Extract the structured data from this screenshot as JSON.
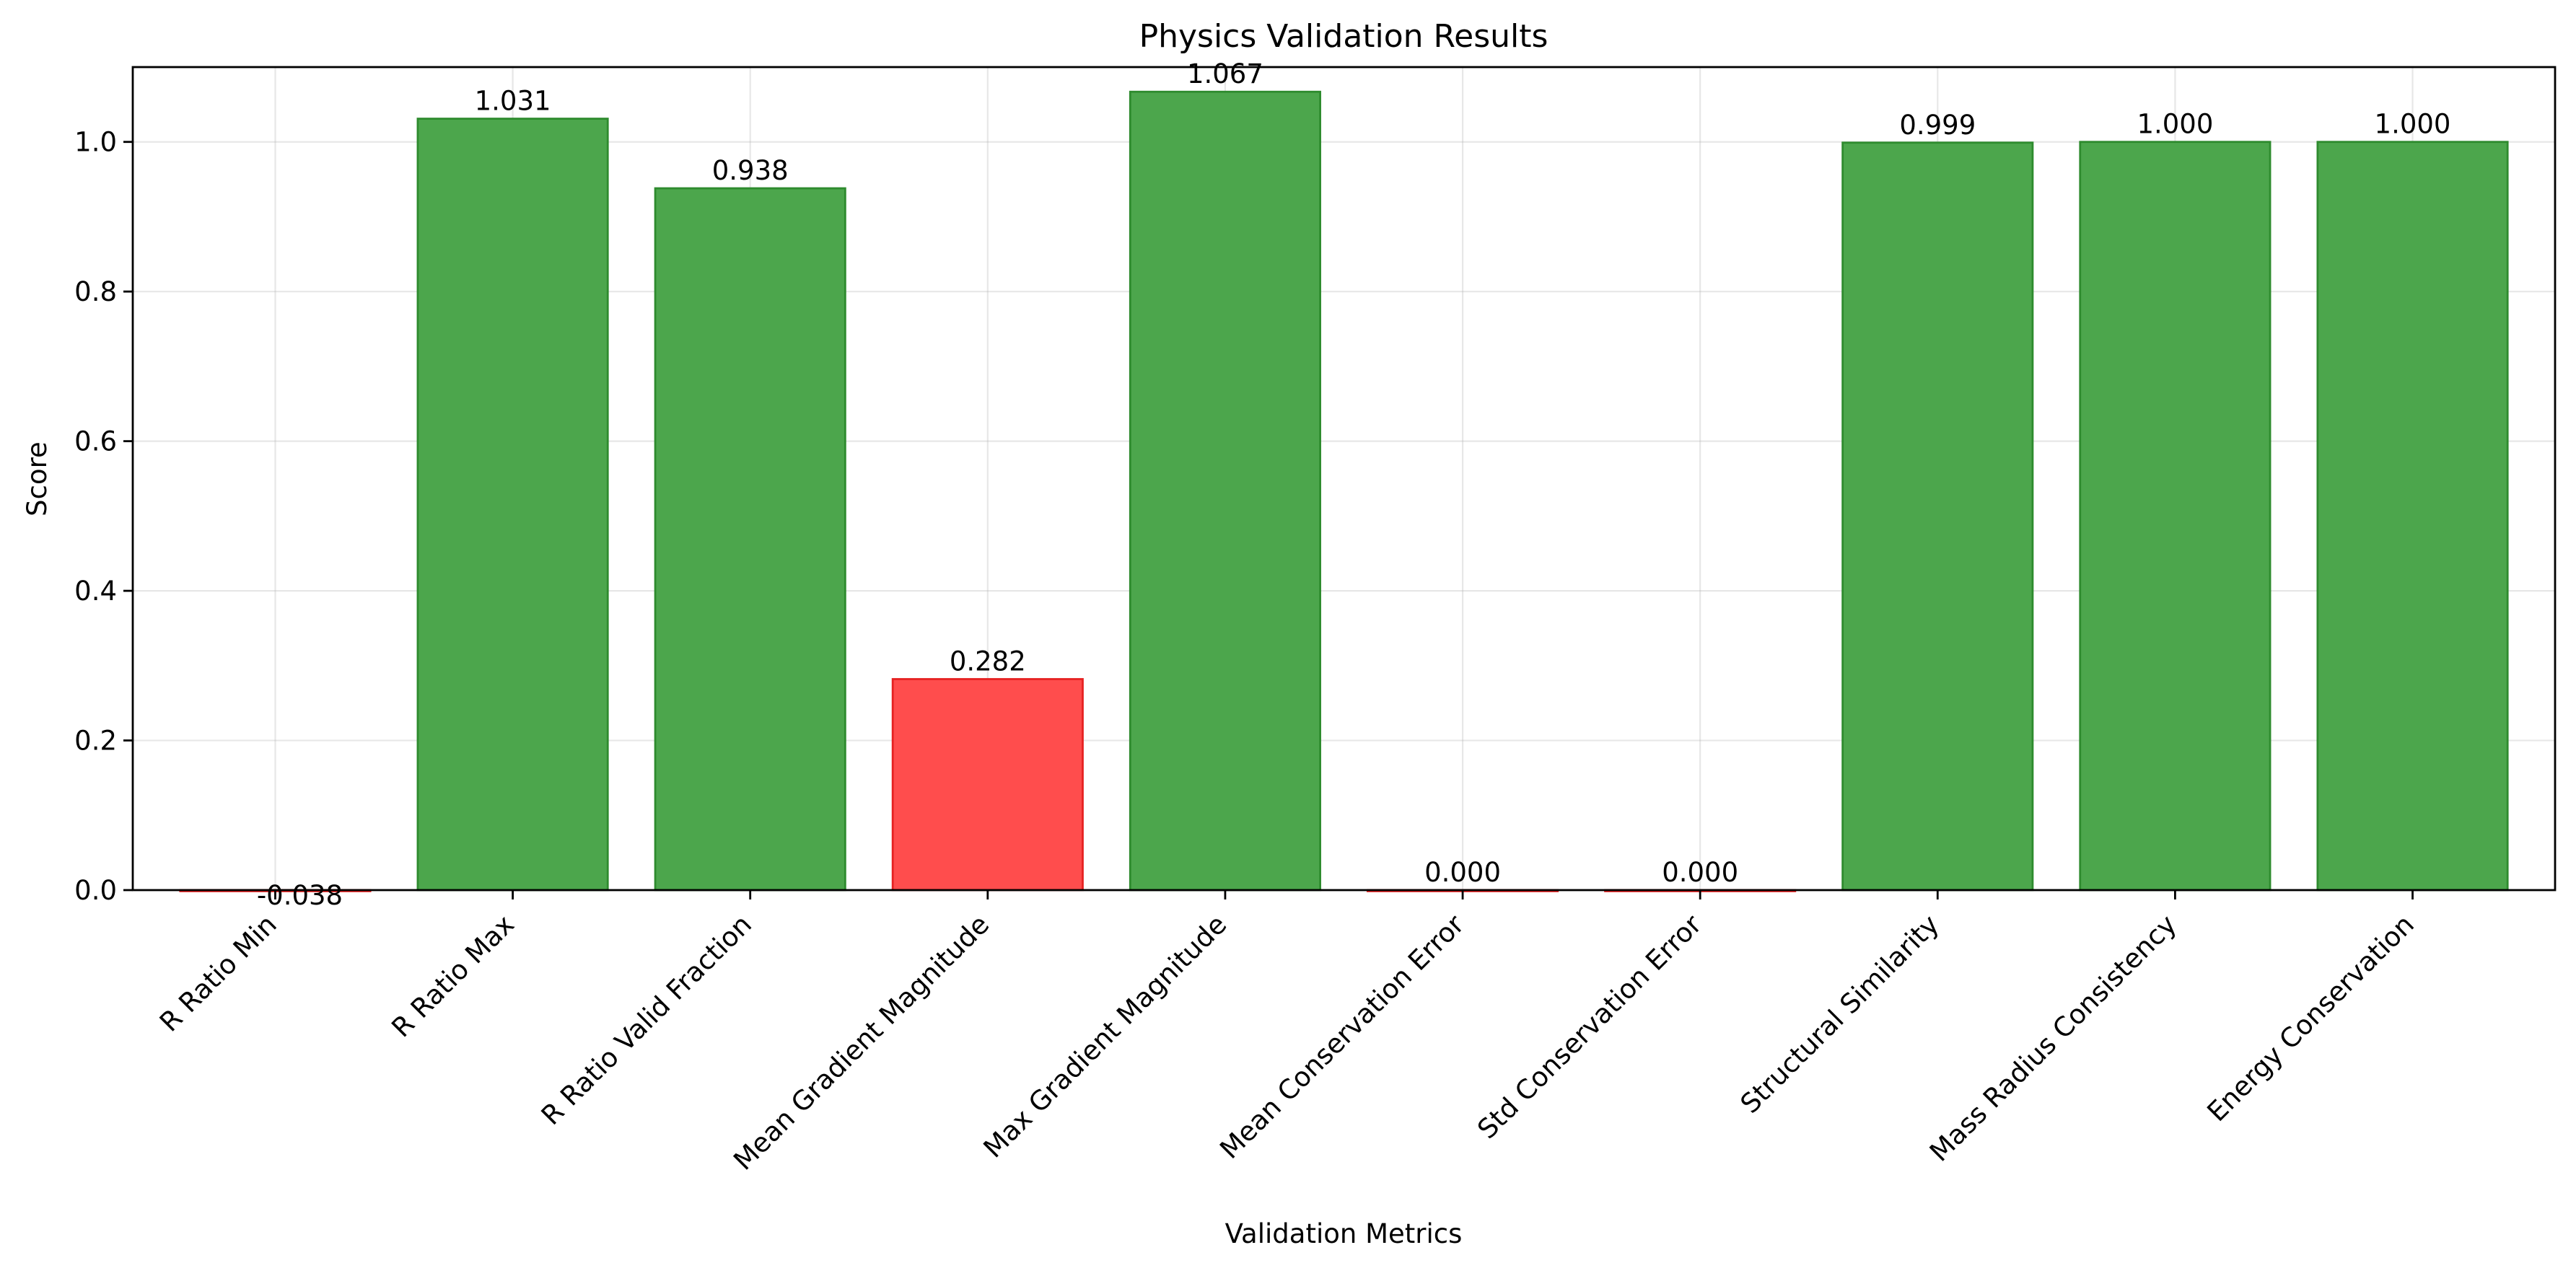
{
  "chart_data": {
    "type": "bar",
    "title": "Physics Validation Results",
    "xlabel": "Validation Metrics",
    "ylabel": "Score",
    "ylim": [
      0.0,
      1.1
    ],
    "yticks": [
      0.0,
      0.2,
      0.4,
      0.6,
      0.8,
      1.0
    ],
    "ytick_labels": [
      "0.0",
      "0.2",
      "0.4",
      "0.6",
      "0.8",
      "1.0"
    ],
    "grid": true,
    "categories": [
      "R Ratio Min",
      "R Ratio Max",
      "R Ratio Valid Fraction",
      "Mean Gradient Magnitude",
      "Max Gradient Magnitude",
      "Mean Conservation Error",
      "Std Conservation Error",
      "Structural Similarity",
      "Mass Radius Consistency",
      "Energy Conservation"
    ],
    "values": [
      -0.038,
      1.031,
      0.938,
      0.282,
      1.067,
      0.0,
      0.0,
      0.999,
      1.0,
      1.0
    ],
    "value_labels": [
      "-0.038",
      "1.031",
      "0.938",
      "0.282",
      "1.067",
      "0.000",
      "0.000",
      "0.999",
      "1.000",
      "1.000"
    ],
    "status": [
      "fail",
      "pass",
      "pass",
      "fail",
      "pass",
      "fail",
      "fail",
      "pass",
      "pass",
      "pass"
    ],
    "colors": {
      "pass_fill": "#4ca64c",
      "pass_edge": "#2e8b2e",
      "fail_fill": "#ff4d4d",
      "fail_edge": "#e62222"
    }
  }
}
